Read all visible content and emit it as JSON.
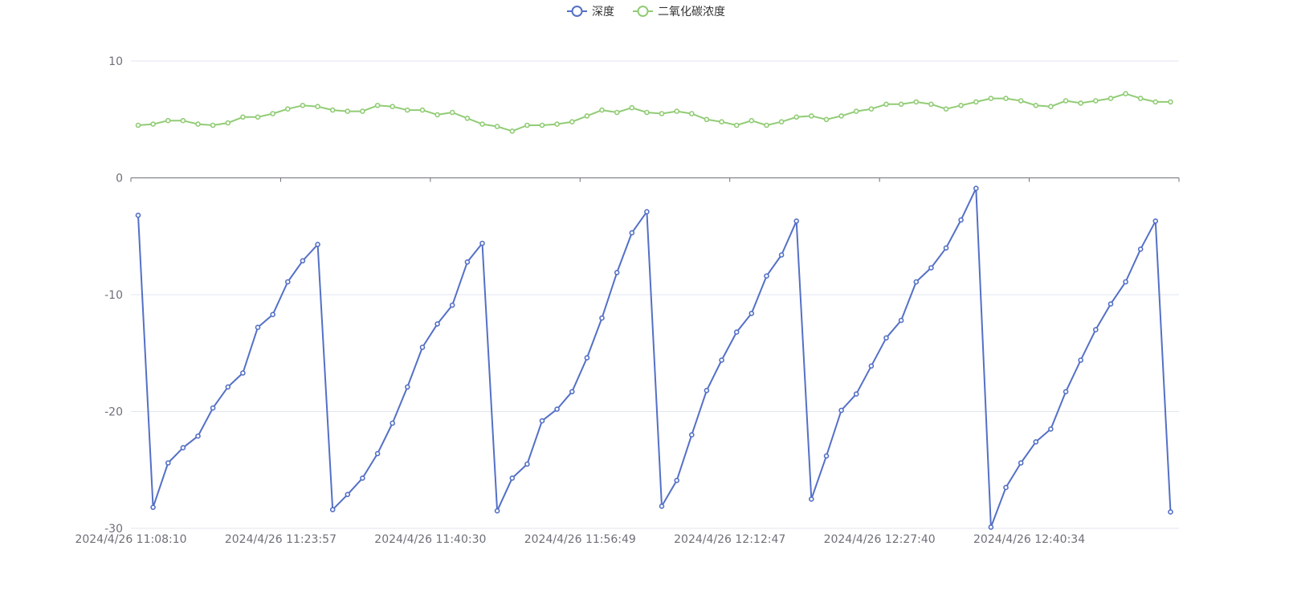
{
  "chart_data": {
    "type": "line",
    "legend_position": "top-center",
    "grid": true,
    "ylim": [
      -30,
      10
    ],
    "yticks": [
      10,
      0,
      -10,
      -20,
      -30
    ],
    "x_tick_labels": [
      "2024/4/26 11:08:10",
      "2024/4/26 11:23:57",
      "2024/4/26 11:40:30",
      "2024/4/26 11:56:49",
      "2024/4/26 12:12:47",
      "2024/4/26 12:27:40",
      "2024/4/26 12:40:34"
    ],
    "series": [
      {
        "name": "深度",
        "color": "#5470c6",
        "values": [
          -3.2,
          -28.2,
          -24.4,
          -23.1,
          -22.1,
          -19.7,
          -17.9,
          -16.7,
          -12.8,
          -11.7,
          -8.9,
          -7.1,
          -5.7,
          -28.4,
          -27.1,
          -25.7,
          -23.6,
          -21.0,
          -17.9,
          -14.5,
          -12.5,
          -10.9,
          -7.2,
          -5.6,
          -28.5,
          -25.7,
          -24.5,
          -20.8,
          -19.8,
          -18.3,
          -15.4,
          -12.0,
          -8.1,
          -4.7,
          -2.9,
          -28.1,
          -25.9,
          -22.0,
          -18.2,
          -15.6,
          -13.2,
          -11.6,
          -8.4,
          -6.6,
          -3.7,
          -27.5,
          -23.8,
          -19.9,
          -18.5,
          -16.1,
          -13.7,
          -12.2,
          -8.9,
          -7.7,
          -6.0,
          -3.6,
          -0.9,
          -29.9,
          -26.5,
          -24.4,
          -22.6,
          -21.5,
          -18.3,
          -15.6,
          -13.0,
          -10.8,
          -8.9,
          -6.1,
          -3.7,
          -28.6
        ],
        "fill": "#ffffff"
      },
      {
        "name": "二氧化碳浓度",
        "color": "#91cc75",
        "values": [
          4.5,
          4.6,
          4.9,
          4.9,
          4.6,
          4.5,
          4.7,
          5.2,
          5.2,
          5.5,
          5.9,
          6.2,
          6.1,
          5.8,
          5.7,
          5.7,
          6.2,
          6.1,
          5.8,
          5.8,
          5.4,
          5.6,
          5.1,
          4.6,
          4.4,
          4.0,
          4.5,
          4.5,
          4.6,
          4.8,
          5.3,
          5.8,
          5.6,
          6.0,
          5.6,
          5.5,
          5.7,
          5.5,
          5.0,
          4.8,
          4.5,
          4.9,
          4.5,
          4.8,
          5.2,
          5.3,
          5.0,
          5.3,
          5.7,
          5.9,
          6.3,
          6.3,
          6.5,
          6.3,
          5.9,
          6.2,
          6.5,
          6.8,
          6.8,
          6.6,
          6.2,
          6.1,
          6.6,
          6.4,
          6.6,
          6.8,
          7.2,
          6.8,
          6.5,
          6.5
        ],
        "fill": "#ffffff"
      }
    ]
  }
}
